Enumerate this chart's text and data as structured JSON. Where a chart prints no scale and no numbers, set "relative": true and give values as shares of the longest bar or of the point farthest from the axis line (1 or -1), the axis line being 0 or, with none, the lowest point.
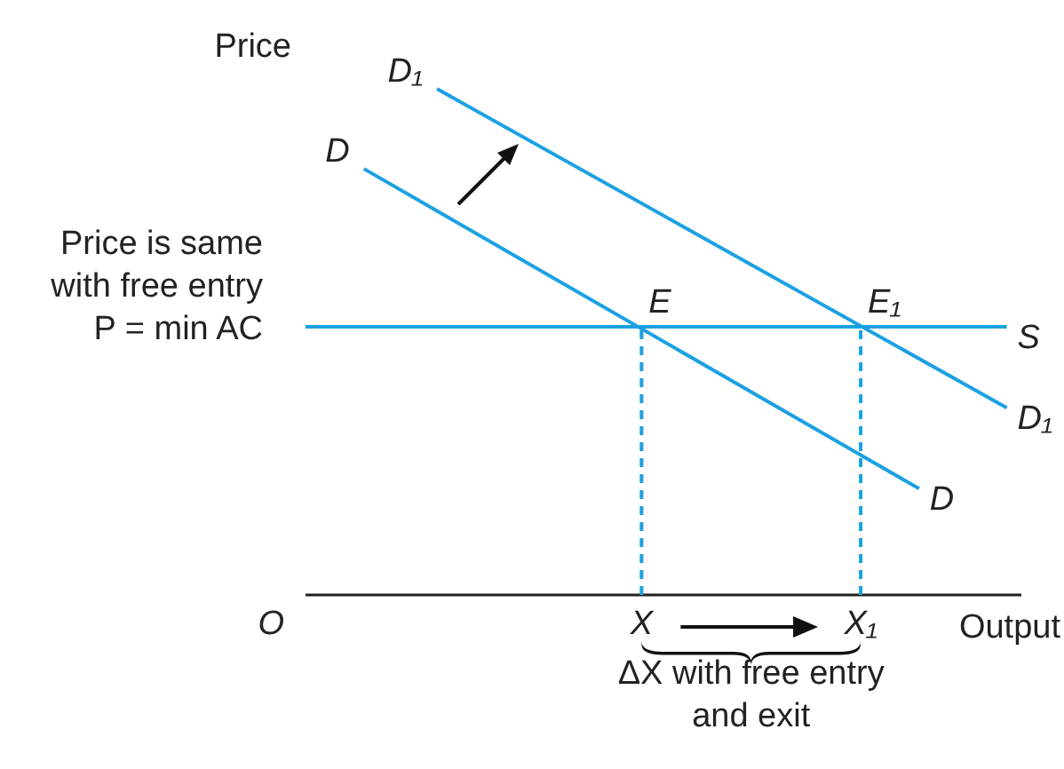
{
  "chart_data": {
    "type": "line",
    "relative": true,
    "ylabel": "Price",
    "xlabel": "Output",
    "tick_labels": "x",
    "marker": "none",
    "line_style": "solid",
    "categories": [
      null,
      null,
      null,
      null,
      null,
      null,
      null,
      null,
      null,
      null,
      null,
      null,
      null,
      null,
      null,
      null,
      null,
      null,
      null,
      null,
      null,
      null,
      null,
      "X",
      null,
      null,
      null,
      null,
      null,
      null,
      null,
      null,
      null,
      null,
      null,
      null,
      null,
      null,
      "X₁",
      null,
      null,
      null,
      null,
      null,
      null,
      null,
      null,
      null,
      null
    ],
    "series": [
      {
        "name": "D",
        "color": "#1ba1e2",
        "values": [
          null,
          null,
          null,
          null,
          0.842,
          null,
          null,
          null,
          null,
          null,
          null,
          null,
          null,
          null,
          null,
          null,
          null,
          null,
          null,
          null,
          null,
          null,
          null,
          null,
          null,
          null,
          null,
          null,
          null,
          null,
          null,
          null,
          null,
          null,
          null,
          null,
          null,
          null,
          null,
          null,
          null,
          null,
          0.21,
          null,
          null,
          null,
          null,
          null,
          null
        ]
      },
      {
        "name": "D₁",
        "color": "#1ba1e2",
        "values": [
          null,
          null,
          null,
          null,
          null,
          null,
          null,
          null,
          null,
          1,
          null,
          null,
          null,
          null,
          null,
          null,
          null,
          null,
          null,
          null,
          null,
          null,
          null,
          null,
          null,
          null,
          null,
          null,
          null,
          null,
          null,
          null,
          null,
          null,
          null,
          null,
          null,
          null,
          null,
          null,
          null,
          null,
          null,
          null,
          null,
          null,
          null,
          null,
          0.37
        ]
      },
      {
        "name": "S",
        "color": "#1ba1e2",
        "values": [
          0.53,
          null,
          null,
          null,
          null,
          null,
          null,
          null,
          null,
          null,
          null,
          null,
          null,
          null,
          null,
          null,
          null,
          null,
          null,
          null,
          null,
          null,
          null,
          null,
          null,
          null,
          null,
          null,
          null,
          null,
          null,
          null,
          null,
          null,
          null,
          null,
          null,
          null,
          null,
          null,
          null,
          null,
          null,
          null,
          null,
          null,
          null,
          null,
          0.53
        ]
      }
    ],
    "ref_lines": [
      {
        "axis": "x",
        "value": "X",
        "color": "#1ba1e2",
        "line_style": "dashed"
      },
      {
        "axis": "x",
        "value": "X₁",
        "color": "#1ba1e2",
        "line_style": "dashed"
      }
    ],
    "annotations": [
      {
        "text": "E",
        "x": "X",
        "y": 0.53
      },
      {
        "text": "E₁",
        "x": "X₁",
        "y": 0.53
      },
      "O",
      "Price is same\nwith free entry\nP = min AC",
      "ΔX with free entry\nand exit"
    ]
  }
}
